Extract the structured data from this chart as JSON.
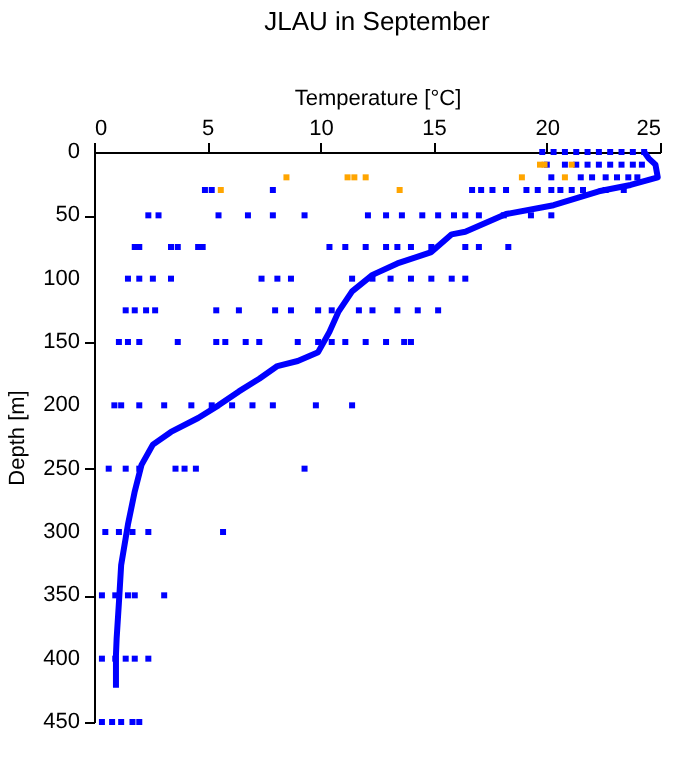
{
  "chart_data": {
    "type": "scatter",
    "title": "JLAU in September",
    "xlabel": "Temperature [°C]",
    "ylabel": "Depth [m]",
    "xlim": [
      0,
      25
    ],
    "xticks": [
      0,
      5,
      10,
      15,
      20,
      25
    ],
    "ylim": [
      450,
      0
    ],
    "yticks": [
      0,
      50,
      100,
      150,
      200,
      250,
      300,
      350,
      400,
      450
    ],
    "grid": false,
    "marker": "square",
    "series": [
      {
        "type": "line",
        "marker": "none",
        "line_style": "solid",
        "color": "#0000ff",
        "x": [
          24.3,
          24.5,
          24.8,
          24.9,
          23.7,
          22.3,
          20.3,
          18.2,
          16.4,
          15.8,
          14.9,
          13.4,
          12.3,
          11.4,
          10.8,
          10.4,
          9.9,
          9.0,
          8.1,
          7.3,
          6.4,
          5.5,
          4.6,
          3.4,
          2.6,
          2.1,
          1.8,
          1.5,
          1.2,
          1.1,
          1.0,
          0.97,
          0.97
        ],
        "values": [
          0,
          5,
          10,
          20,
          26,
          31,
          42,
          49,
          63,
          65,
          79,
          88,
          97,
          110,
          126,
          142,
          158,
          165,
          169,
          179,
          189,
          200,
          210,
          221,
          231,
          247,
          268,
          294,
          326,
          356,
          384,
          397,
          423
        ]
      },
      {
        "color": "#0000ff",
        "x": [
          19.8,
          20.3,
          20.8,
          21.3,
          21.8,
          22.3,
          22.8,
          23.3,
          23.8,
          24.3,
          20.0,
          20.8,
          21.3,
          21.8,
          22.3,
          22.8,
          23.3,
          23.8,
          24.2,
          20.2,
          20.8,
          21.5,
          22.0,
          22.6,
          23.1,
          23.6,
          24.0,
          4.9,
          5.2,
          7.9,
          16.7,
          17.1,
          17.6,
          18.2,
          19.1,
          19.6,
          20.2,
          20.6,
          21.1,
          21.6,
          22.6,
          23.4,
          2.4,
          2.85,
          5.5,
          6.8,
          7.9,
          9.3,
          12.1,
          12.9,
          13.6,
          14.5,
          15.2,
          15.9,
          16.4,
          17.0,
          18.1,
          19.3,
          20.2,
          1.8,
          2.0,
          3.4,
          3.7,
          4.6,
          4.8,
          10.4,
          11.1,
          12.0,
          12.9,
          13.4,
          14.0,
          14.9,
          16.4,
          17.0,
          18.3,
          1.5,
          2.0,
          2.6,
          3.4,
          7.4,
          8.1,
          8.7,
          11.4,
          12.3,
          13.1,
          14.0,
          14.9,
          15.8,
          16.4,
          1.4,
          1.8,
          2.3,
          2.7,
          5.4,
          6.4,
          8.0,
          8.7,
          9.9,
          10.5,
          11.7,
          12.3,
          13.4,
          14.3,
          15.2,
          1.1,
          1.5,
          2.0,
          3.7,
          5.4,
          5.8,
          6.7,
          7.3,
          9.0,
          9.9,
          10.5,
          11.1,
          12.0,
          12.9,
          13.7,
          14.0,
          0.9,
          1.2,
          2.0,
          3.1,
          4.3,
          5.2,
          6.1,
          7.0,
          7.9,
          9.8,
          11.4,
          0.65,
          1.4,
          2.0,
          3.6,
          4.0,
          4.5,
          9.3,
          0.5,
          1.1,
          1.7,
          2.4,
          5.7,
          0.35,
          0.94,
          1.5,
          1.8,
          3.1,
          0.35,
          0.94,
          1.4,
          1.8,
          2.4,
          0.35,
          0.8,
          1.2,
          1.7,
          2.0
        ],
        "values": [
          0,
          0,
          0,
          0,
          0,
          0,
          0,
          0,
          0,
          0,
          10,
          10,
          10,
          10,
          10,
          10,
          10,
          10,
          10,
          20,
          null,
          20,
          20,
          20,
          20,
          20,
          20,
          30,
          30,
          30,
          30,
          30,
          30,
          30,
          30,
          30,
          30,
          30,
          30,
          30,
          30,
          30,
          50,
          50,
          50,
          50,
          50,
          50,
          50,
          50,
          50,
          50,
          50,
          50,
          50,
          50,
          50,
          50,
          50,
          75,
          75,
          75,
          75,
          75,
          75,
          75,
          75,
          75,
          75,
          75,
          75,
          75,
          75,
          75,
          75,
          100,
          100,
          100,
          100,
          100,
          100,
          100,
          100,
          100,
          100,
          100,
          100,
          100,
          100,
          125,
          125,
          125,
          125,
          125,
          125,
          125,
          125,
          125,
          125,
          125,
          125,
          125,
          125,
          125,
          150,
          150,
          150,
          150,
          150,
          150,
          150,
          150,
          150,
          150,
          150,
          150,
          150,
          150,
          150,
          150,
          200,
          200,
          200,
          200,
          200,
          200,
          200,
          200,
          200,
          200,
          200,
          250,
          250,
          250,
          250,
          250,
          250,
          250,
          300,
          300,
          300,
          300,
          300,
          350,
          350,
          350,
          350,
          350,
          400,
          400,
          400,
          400,
          400,
          450,
          450,
          450,
          450,
          450
        ]
      },
      {
        "color": "#ffa500",
        "x": [
          19.7,
          19.9,
          21.1,
          8.5,
          11.2,
          11.5,
          12.0,
          18.9,
          20.8,
          5.6,
          13.5
        ],
        "values": [
          10,
          10,
          10,
          20,
          20,
          20,
          20,
          20,
          20,
          30,
          30
        ]
      }
    ]
  }
}
